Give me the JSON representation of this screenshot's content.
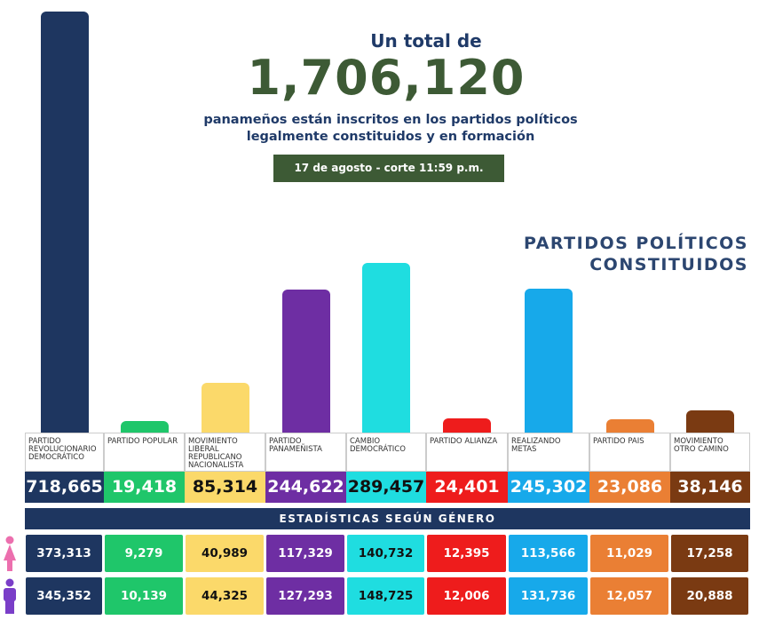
{
  "header": {
    "line1": "Un total de",
    "total": "1,706,120",
    "line2": "panameños están inscritos en los partidos políticos",
    "line3": "legalmente constituidos y en formación",
    "date": "17 de agosto - corte 11:59 p.m."
  },
  "section_title_1": "PARTIDOS POLÍTICOS",
  "section_title_2": "CONSTITUIDOS",
  "gender_title": "ESTADÍSTICAS SEGÚN GÉNERO",
  "icons": {
    "female": "female-person-icon",
    "male": "male-person-icon"
  },
  "chart_data": {
    "type": "bar",
    "categories": [
      "PARTIDO REVOLUCIONARIO DEMOCRÁTICO",
      "PARTIDO POPULAR",
      "MOVIMIENTO LIBERAL REPUBLICANO NACIONALISTA",
      "PARTIDO PANAMEÑISTA",
      "CAMBIO DEMOCRÁTICO",
      "PARTIDO ALIANZA",
      "REALIZANDO METAS",
      "PARTIDO PAIS",
      "MOVIMIENTO OTRO CAMINO"
    ],
    "values": [
      718665,
      19418,
      85314,
      244622,
      289457,
      24401,
      245302,
      23086,
      38146
    ],
    "value_labels": [
      "718,665",
      "19,418",
      "85,314",
      "244,622",
      "289,457",
      "24,401",
      "245,302",
      "23,086",
      "38,146"
    ],
    "colors": [
      "#1e3660",
      "#1fc66a",
      "#fbd96a",
      "#6e2ea3",
      "#1fdde0",
      "#ee1c1c",
      "#17a9ea",
      "#ea7f34",
      "#7a3a12"
    ],
    "text_colors": [
      "#fff",
      "#fff",
      "#111",
      "#fff",
      "#111",
      "#fff",
      "#fff",
      "#fff",
      "#fff"
    ],
    "female": [
      "373,313",
      "9,279",
      "40,989",
      "117,329",
      "140,732",
      "12,395",
      "113,566",
      "11,029",
      "17,258"
    ],
    "male": [
      "345,352",
      "10,139",
      "44,325",
      "127,293",
      "148,725",
      "12,006",
      "131,736",
      "12,057",
      "20,888"
    ]
  }
}
